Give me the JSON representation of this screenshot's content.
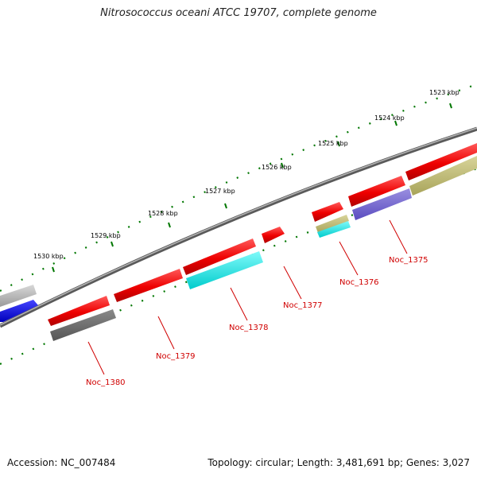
{
  "header": {
    "title": "Nitrosococcus oceani ATCC 19707, complete genome"
  },
  "footer": {
    "accession": "Accession: NC_007484",
    "stats": "Topology: circular; Length: 3,481,691 bp; Genes: 3,027"
  },
  "scale_labels": [
    "1523 kbp",
    "1524 kbp",
    "1525 kbp",
    "1526 kbp",
    "1527 kbp",
    "1528 kbp",
    "1529 kbp",
    "1530 kbp"
  ],
  "gene_labels": [
    "Noc_1375",
    "Noc_1376",
    "Noc_1377",
    "Noc_1378",
    "Noc_1379",
    "Noc_1380"
  ],
  "colors": {
    "forward_gene": "#ff0000",
    "backbone": "#777777",
    "ticks": "#007700",
    "label": "#d00000",
    "cyan_feature": "#00e5e5",
    "purple_feature": "#6a5acd",
    "khaki_feature": "#bdb76b",
    "grey_feature": "#666666",
    "blue_feature": "#0000ee"
  }
}
